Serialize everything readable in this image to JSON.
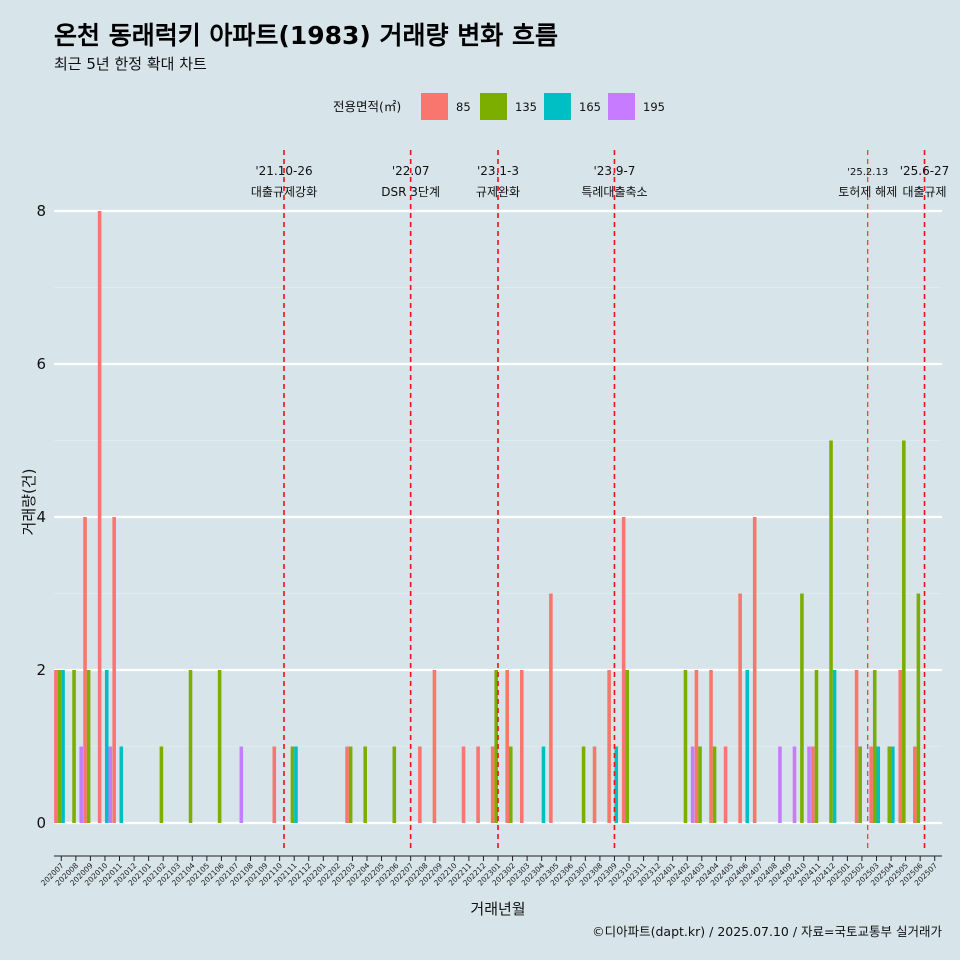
{
  "chart_data": {
    "type": "bar",
    "title": "온천 동래럭키 아파트(1983) 거래량 변화 흐름",
    "subtitle": "최근 5년 한정 확대 차트",
    "xlabel": "거래년월",
    "ylabel": "거래량(건)",
    "ylim": [
      0,
      8.6
    ],
    "yticks": [
      0,
      2,
      4,
      6,
      8
    ],
    "grid": true,
    "legend": {
      "title": "전용면적(㎡)",
      "position": "top",
      "entries": [
        "85",
        "135",
        "165",
        "195"
      ]
    },
    "colors": {
      "85": "#f8766d",
      "135": "#7cae00",
      "165": "#00bfc4",
      "195": "#c77cff"
    },
    "categories": [
      "202007",
      "202008",
      "202009",
      "202010",
      "202011",
      "202012",
      "202101",
      "202102",
      "202103",
      "202104",
      "202105",
      "202106",
      "202107",
      "202108",
      "202109",
      "202110",
      "202111",
      "202112",
      "202201",
      "202202",
      "202203",
      "202204",
      "202205",
      "202206",
      "202207",
      "202208",
      "202209",
      "202210",
      "202211",
      "202212",
      "202301",
      "202302",
      "202303",
      "202304",
      "202305",
      "202306",
      "202307",
      "202308",
      "202309",
      "202310",
      "202311",
      "202312",
      "202401",
      "202402",
      "202403",
      "202404",
      "202405",
      "202406",
      "202407",
      "202408",
      "202409",
      "202410",
      "202411",
      "202412",
      "202501",
      "202502",
      "202503",
      "202504",
      "202505",
      "202506",
      "202507"
    ],
    "series": [
      {
        "name": "85",
        "values": [
          2,
          0,
          4,
          8,
          4,
          0,
          0,
          0,
          0,
          0,
          0,
          0,
          0,
          0,
          0,
          1,
          0,
          0,
          0,
          0,
          1,
          0,
          0,
          0,
          0,
          1,
          2,
          0,
          1,
          1,
          1,
          2,
          2,
          0,
          3,
          0,
          0,
          1,
          2,
          4,
          0,
          0,
          0,
          0,
          2,
          2,
          1,
          3,
          4,
          0,
          0,
          0,
          1,
          0,
          0,
          2,
          1,
          0,
          2,
          1,
          0
        ]
      },
      {
        "name": "135",
        "values": [
          2,
          2,
          2,
          0,
          0,
          0,
          0,
          1,
          0,
          2,
          0,
          2,
          0,
          0,
          0,
          0,
          1,
          0,
          0,
          0,
          1,
          1,
          0,
          1,
          0,
          0,
          0,
          0,
          0,
          0,
          2,
          1,
          0,
          0,
          0,
          0,
          1,
          0,
          0,
          2,
          0,
          0,
          0,
          2,
          1,
          1,
          0,
          0,
          0,
          0,
          0,
          3,
          2,
          5,
          0,
          1,
          2,
          1,
          5,
          3,
          0
        ]
      },
      {
        "name": "165",
        "values": [
          2,
          0,
          0,
          2,
          1,
          0,
          0,
          0,
          0,
          0,
          0,
          0,
          0,
          0,
          0,
          0,
          1,
          0,
          0,
          0,
          0,
          0,
          0,
          0,
          0,
          0,
          0,
          0,
          0,
          0,
          0,
          0,
          0,
          1,
          0,
          0,
          0,
          0,
          1,
          0,
          0,
          0,
          0,
          0,
          0,
          0,
          0,
          2,
          0,
          0,
          0,
          0,
          0,
          2,
          0,
          0,
          1,
          1,
          0,
          0,
          0
        ]
      },
      {
        "name": "195",
        "values": [
          0,
          1,
          0,
          1,
          0,
          0,
          0,
          0,
          0,
          0,
          0,
          0,
          1,
          0,
          0,
          0,
          0,
          0,
          0,
          0,
          0,
          0,
          0,
          0,
          0,
          0,
          0,
          0,
          0,
          0,
          0,
          0,
          0,
          0,
          0,
          0,
          0,
          0,
          0,
          0,
          0,
          0,
          0,
          1,
          0,
          0,
          0,
          0,
          0,
          1,
          1,
          1,
          0,
          0,
          0,
          0,
          0,
          0,
          0,
          0,
          0
        ]
      }
    ],
    "events": [
      {
        "date": "'21.10-26",
        "label": "대출규제강화",
        "position": 15.3
      },
      {
        "date": "'22.07",
        "label": "DSR 3단계",
        "position": 24.0
      },
      {
        "date": "'23.1-3",
        "label": "규제완화",
        "position": 30.0
      },
      {
        "date": "'23.9-7",
        "label": "특례대출축소",
        "position": 38.0
      },
      {
        "date": "'25.2.13",
        "label": "토허제 해제",
        "position": 55.4
      },
      {
        "date": "'25.6-27",
        "label": "대출규제",
        "position": 59.3
      }
    ],
    "caption": "©디아파트(dapt.kr) / 2025.07.10 / 자료=국토교통부 실거래가"
  }
}
